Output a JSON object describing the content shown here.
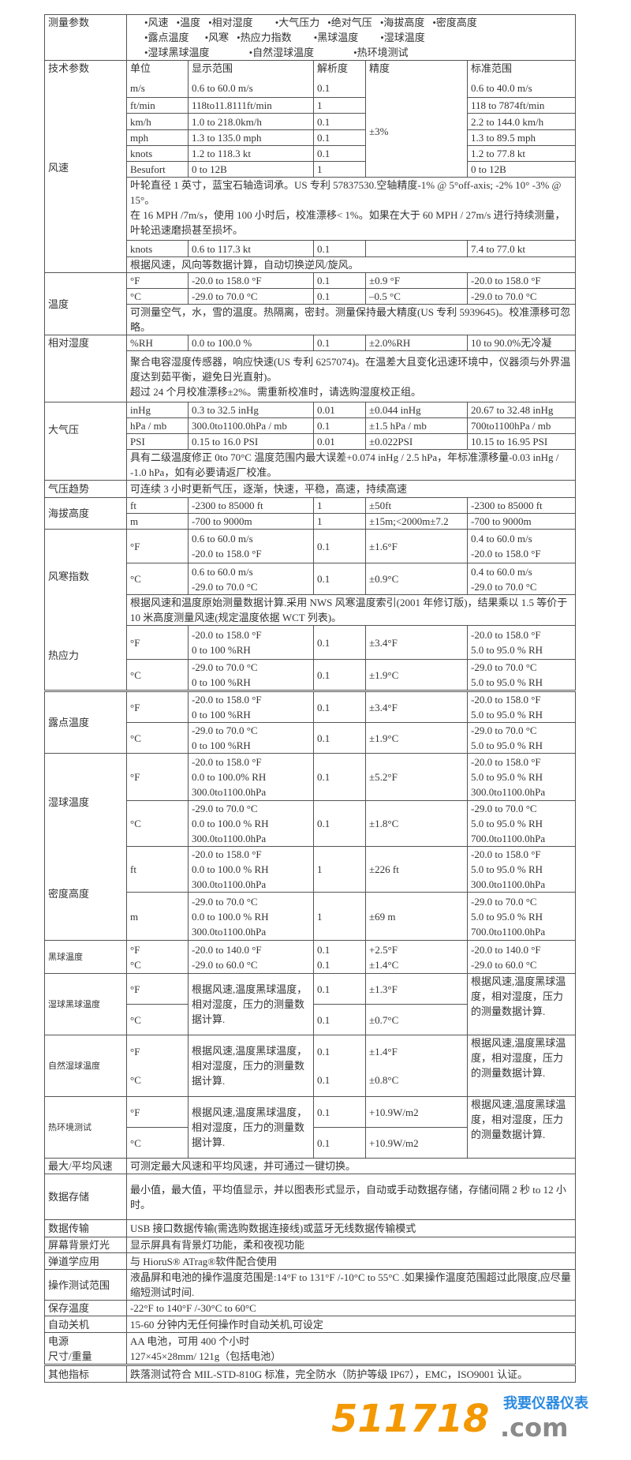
{
  "measure": {
    "label": "测量参数",
    "line1": [
      "•风速",
      "•温度",
      "•相对湿度",
      "•大气压力",
      "•绝对气压",
      "•海拔高度",
      "•密度高度"
    ],
    "line2": [
      "•露点温度",
      "•风寒",
      "•热应力指数",
      "•黑球温度",
      "•湿球温度"
    ],
    "line3": [
      "•湿球黑球温度",
      "•自然湿球温度",
      "•热环境测试"
    ]
  },
  "header": {
    "label": "技术参数",
    "unit": "单位",
    "range": "显示范围",
    "res": "解析度",
    "acc": "精度",
    "std": "标准范围"
  },
  "wind": {
    "label": "风速",
    "acc": "±3%",
    "rows": [
      [
        "m/s",
        "0.6 to 60.0 m/s",
        "0.1",
        "0.6 to 40.0 m/s"
      ],
      [
        "ft/min",
        "118to11.8111ft/min",
        "1",
        "118 to 7874ft/min"
      ],
      [
        "km/h",
        "1.0 to 218.0km/h",
        "0.1",
        "2.2 to 144.0 km/h"
      ],
      [
        "mph",
        "1.3 to 135.0 mph",
        "0.1",
        "1.3 to 89.5 mph"
      ],
      [
        "knots",
        "1.2 to 118.3 kt",
        "0.1",
        "1.2 to 77.8 kt"
      ],
      [
        "Besufort",
        "0 to 12B",
        "1",
        "0 to 12B"
      ]
    ],
    "note1": "叶轮直径 1 英寸，蓝宝石轴造词承。US 专利 57837530.空轴精度-1% @ 5°off-axis; -2% 10° -3% @ 15°。",
    "note2": "在 16 MPH /7m/s，使用 100 小时后，校准漂移< 1%。如果在大于 60 MPH / 27m/s 进行持续测量，叶轮迅速磨损甚至损坏。",
    "knots": [
      "knots",
      "0.6 to 117.3 kt",
      "0.1",
      "",
      "7.4 to 77.0 kt"
    ],
    "note3": "根据风速，风向等数据计算，自动切换逆风/旋风。"
  },
  "temp": {
    "label": "温度",
    "rows": [
      [
        "°F",
        "-20.0 to 158.0 °F",
        "0.1",
        "±0.9 °F",
        "-20.0 to 158.0 °F"
      ],
      [
        "°C",
        "-29.0 to 70.0 °C",
        "0.1",
        "–0.5 °C",
        "-29.0 to 70.0 °C"
      ]
    ],
    "note": "可测量空气，水，雪的温度。热隔离，密封。测量保持最大精度(US 专利 5939645)。校准漂移可忽略。"
  },
  "rh": {
    "label": "相对湿度",
    "row": [
      "%RH",
      "0.0 to 100.0 %",
      "0.1",
      "±2.0%RH",
      "10 to 90.0%无冷凝"
    ],
    "note1": "聚合电容湿度传感器，响应快速(US 专利 6257074)。在温差大且变化迅速环境中，仪器须与外界温度达到茹平衡，避免日光直射)。",
    "note2": "超过 24 个月校准漂移±2%。需重新校准时，请选购湿度校正组。"
  },
  "pressure": {
    "label": "大气压",
    "rows": [
      [
        "inHg",
        "0.3 to 32.5 inHg",
        "0.01",
        "±0.044 inHg",
        "20.67 to 32.48 inHg"
      ],
      [
        "hPa / mb",
        "300.0to1100.0hPa / mb",
        "0.1",
        "±1.5 hPa / mb",
        "700to1100hPa / mb"
      ],
      [
        "PSI",
        "0.15 to 16.0 PSI",
        "0.01",
        "±0.022PSI",
        "10.15 to 16.95 PSI"
      ]
    ],
    "note": "具有二级温度修正 0to 70°C 温度范围内最大误差+0.074 inHg / 2.5 hPa，年标准漂移量-0.03 inHg / -1.0 hPa，如有必要请返厂校准。"
  },
  "trend": {
    "label": "气压趋势",
    "text": "可连续 3 小时更新气压，逐渐，快速，平稳，高速，持续高速"
  },
  "altitude": {
    "label": "海拔高度",
    "rows": [
      [
        "ft",
        "-2300 to 85000 ft",
        "1",
        "±50ft",
        "-2300 to 85000 ft"
      ],
      [
        "m",
        "-700 to 9000m",
        "1",
        "±15m;<2000m±7.2",
        "-700 to 9000m"
      ]
    ]
  },
  "windchill": {
    "label": "风寒指数",
    "rows": [
      [
        "°F",
        "0.6 to 60.0 m/s",
        "-20.0 to 158.0 °F",
        "0.1",
        "±1.6°F",
        "0.4 to 60.0 m/s",
        "-20.0 to 158.0 °F"
      ],
      [
        "°C",
        "0.6 to 60.0 m/s",
        "-29.0 to 70.0 °C",
        "0.1",
        "±0.9°C",
        "0.4 to 60.0 m/s",
        "-29.0 to 70.0 °C"
      ]
    ],
    "note": "根据风速和温度原始测量数据计算.采用 NWS 风寒温度索引(2001 年修订版)，结果乘以 1.5 等价于 10 米高度测量风速(规定温度依据 WCT 列表)。"
  },
  "heatstress": {
    "label": "热应力",
    "rows": [
      [
        "°F",
        "-20.0 to 158.0 °F",
        "0 to 100 %RH",
        "0.1",
        "±3.4°F",
        "-20.0 to 158.0 °F",
        "5.0 to 95.0 % RH"
      ],
      [
        "°C",
        "-29.0 to 70.0 °C",
        "0 to 100 %RH",
        "0.1",
        "±1.9°C",
        "-29.0 to 70.0 °C",
        "5.0 to 95.0 % RH"
      ]
    ]
  },
  "dewpoint": {
    "label": "露点温度",
    "rows": [
      [
        "°F",
        "-20.0 to 158.0 °F",
        "0 to 100 %RH",
        "0.1",
        "±3.4°F",
        "-20.0 to 158.0 °F",
        "5.0 to 95.0 % RH"
      ],
      [
        "°C",
        "-29.0 to 70.0 °C",
        "0 to 100 %RH",
        "0.1",
        "±1.9°C",
        "-29.0 to 70.0 °C",
        "5.0 to 95.0 % RH"
      ]
    ]
  },
  "wetbulb": {
    "label": "湿球温度",
    "rows": [
      [
        "°F",
        [
          "-20.0 to 158.0 °F",
          "0.0 to 100.0% RH",
          "300.0to1100.0hPa"
        ],
        "0.1",
        "±5.2°F",
        [
          "-20.0 to 158.0 °F",
          "5.0 to 95.0 % RH",
          "300.0to1100.0hPa"
        ]
      ],
      [
        "°C",
        [
          "-29.0 to 70.0 °C",
          "0.0 to 100.0 % RH",
          "300.0to1100.0hPa"
        ],
        "0.1",
        "±1.8°C",
        [
          "-29.0 to 70.0 °C",
          "5.0 to 95.0 % RH",
          "700.0to1100.0hPa"
        ]
      ]
    ]
  },
  "density": {
    "label": "密度高度",
    "rows": [
      [
        "ft",
        [
          "-20.0 to 158.0 °F",
          "0.0 to 100.0 % RH",
          "300.0to1100.0hPa"
        ],
        "1",
        "±226 ft",
        [
          "-20.0 to 158.0 °F",
          "5.0 to 95.0 % RH",
          "300.0to1100.0hPa"
        ]
      ],
      [
        "m",
        [
          "-29.0 to 70.0 °C",
          "0.0 to 100.0 % RH",
          "300.0to1100.0hPa"
        ],
        "1",
        "±69 m",
        [
          "-29.0 to 70.0 °C",
          "5.0 to 95.0 % RH",
          "700.0to1100.0hPa"
        ]
      ]
    ]
  },
  "globe": {
    "label": "黑球温度",
    "rows": [
      [
        "°F",
        "-20.0 to 140.0 °F",
        "0.1",
        "+2.5°F",
        "-20.0 to 140.0 °F"
      ],
      [
        "°C",
        "-29.0 to 60.0 °C",
        "0.1",
        "±1.4°C",
        "-29.0 to 60.0 °C"
      ]
    ]
  },
  "wbgt": {
    "label": "湿球黑球温度",
    "calc": "根据风速,温度黑球温度，相对湿度，压力的测量数据计算.",
    "std": "根据风速,温度黑球温度，相对湿度，压力的测量数据计算.",
    "rows": [
      [
        "°F",
        "0.1",
        "±1.3°F"
      ],
      [
        "°C",
        "0.1",
        "±0.7°C"
      ]
    ]
  },
  "nwb": {
    "label": "自然湿球温度",
    "calc": "根据风速,温度黑球温度，相对湿度，压力的测量数据计算.",
    "std": "根据风速,温度黑球温度，相对湿度，压力的测量数据计算.",
    "rows": [
      [
        "°F",
        "0.1",
        "±1.4°F"
      ],
      [
        "°C",
        "0.1",
        "±0.8°C"
      ]
    ]
  },
  "heatenv": {
    "label": "热环境测试",
    "calc": "根据风速,温度黑球温度，相对湿度，压力的测量数据计算.",
    "std": "根据风速,温度黑球温度，相对湿度，压力的测量数据计算.",
    "rows": [
      [
        "°F",
        "0.1",
        "+10.9W/m2"
      ],
      [
        "°C",
        "0.1",
        "+10.9W/m2"
      ]
    ]
  },
  "misc": [
    {
      "label": "最大/平均风速",
      "text": "可测定最大风速和平均风速，并可通过一键切换。"
    },
    {
      "label": "数据存储",
      "text": "最小值，最大值，平均值显示，并以图表形式显示，自动或手动数据存储，存储间隔 2 秒 to 12 小时。"
    },
    {
      "label": "数据传输",
      "text": "USB 接口数据传输(需选购数据连接线)或蓝牙无线数据传输模式"
    },
    {
      "label": "屏幕背景灯光",
      "text": "显示屏具有背景灯功能，柔和夜视功能"
    },
    {
      "label": "弹道学应用",
      "text": "与 HioruS® ATrag®软件配合使用"
    },
    {
      "label": "操作测试范围",
      "text": "液晶屏和电池的操作温度范围是:14°F to 131°F /-10°C to 55°C .如果操作温度范围超过此限度,应尽量缩短测试时间."
    },
    {
      "label": "保存温度",
      "text": "-22°F to 140°F /-30°C to 60°C"
    },
    {
      "label": "自动关机",
      "text": "15-60 分钟内无任何操作时自动关机,可设定"
    }
  ],
  "power": {
    "label1": "电源",
    "label2": "尺寸/重量",
    "text1": "AA 电池，可用 400 个小时",
    "text2": "127×45×28mm/  121g（包括电池）"
  },
  "other": {
    "label": "其他指标",
    "text": "跌落测试符合 MIL-STD-810G 标准，完全防水（防护等级 IP67），EMC，ISO9001 认证。"
  },
  "logo": {
    "number": "511718",
    "cn": "我要仪器仪表",
    "com": ".com",
    "colors": {
      "number": "#f39800",
      "cn": "#2a8ae0",
      "com": "#8a8a8a"
    }
  }
}
